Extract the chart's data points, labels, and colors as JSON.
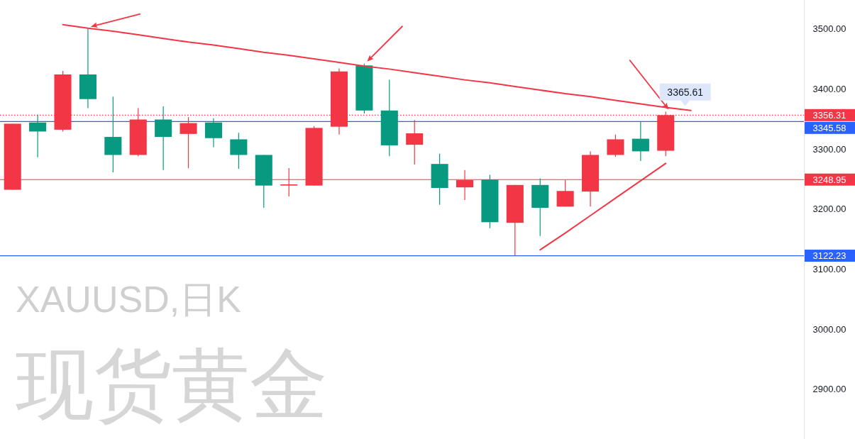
{
  "chart_data": {
    "type": "candlestick",
    "title": "XAUUSD,日K",
    "subtitle": "现货黄金",
    "categories": [
      null,
      null,
      null,
      null,
      null,
      null,
      null,
      null,
      null,
      null,
      null,
      null,
      null,
      null,
      null,
      null,
      null,
      null,
      null,
      null,
      null,
      null,
      null,
      null,
      null,
      null,
      null,
      null,
      null,
      null,
      null,
      null
    ],
    "ohlc": [
      [
        3232,
        3342,
        3232,
        3342
      ],
      [
        3344,
        3357,
        3286,
        3329
      ],
      [
        3332,
        3430,
        3329,
        3424
      ],
      [
        3424,
        3500,
        3368,
        3383
      ],
      [
        3320,
        3387,
        3261,
        3290
      ],
      [
        3290,
        3368,
        3288,
        3349
      ],
      [
        3349,
        3371,
        3265,
        3320
      ],
      [
        3325,
        3353,
        3268,
        3343
      ],
      [
        3344,
        3351,
        3303,
        3318
      ],
      [
        3316,
        3327,
        3267,
        3290
      ],
      [
        3290,
        3290,
        3202,
        3239
      ],
      [
        3239,
        3268,
        3221,
        3241
      ],
      [
        3239,
        3338,
        3239,
        3335
      ],
      [
        3337,
        3434,
        3324,
        3429
      ],
      [
        3439,
        3442,
        3359,
        3364
      ],
      [
        3364,
        3415,
        3288,
        3306
      ],
      [
        3307,
        3348,
        3274,
        3326
      ],
      [
        3275,
        3292,
        3207,
        3235
      ],
      [
        3236,
        3265,
        3215,
        3248
      ],
      [
        3249,
        3257,
        3168,
        3178
      ],
      [
        3177,
        3240,
        3122,
        3240
      ],
      [
        3240,
        3251,
        3155,
        3202
      ],
      [
        3204,
        3248,
        3204,
        3230
      ],
      [
        3229,
        3296,
        3204,
        3290
      ],
      [
        3290,
        3324,
        3287,
        3316
      ],
      [
        3317,
        3345,
        3280,
        3296
      ],
      [
        3297,
        3362,
        3288,
        3356.31
      ],
      null,
      null,
      null,
      null,
      null
    ],
    "colors": [
      "#f23645",
      "#089981",
      "#f23645",
      "#089981",
      "#089981",
      "#f23645",
      "#089981",
      "#f23645",
      "#089981",
      "#089981",
      "#089981",
      "#f23645",
      "#f23645",
      "#f23645",
      "#089981",
      "#089981",
      "#f23645",
      "#089981",
      "#f23645",
      "#089981",
      "#f23645",
      "#089981",
      "#f23645",
      "#f23645",
      "#f23645",
      "#089981",
      "#f23645",
      null,
      null,
      null,
      null,
      null
    ],
    "series": [
      {
        "type": "line",
        "color": "#f23645",
        "values": [
          null,
          null,
          3507,
          3501,
          3496,
          3490,
          3484,
          3478,
          3473,
          3467,
          3461,
          3456,
          3450,
          3444,
          3438,
          3433,
          3427,
          3421,
          3415,
          3410,
          3404,
          3398,
          3392,
          3387,
          3381,
          3375,
          3369,
          3364,
          null,
          null,
          null,
          null
        ]
      },
      {
        "type": "line",
        "color": "#f23645",
        "values": [
          null,
          null,
          null,
          null,
          null,
          null,
          null,
          null,
          null,
          null,
          null,
          null,
          null,
          null,
          null,
          null,
          null,
          null,
          null,
          null,
          null,
          3132,
          3160,
          3189,
          3218,
          3247,
          3276,
          null,
          null,
          null,
          null,
          null
        ]
      }
    ],
    "ref_lines": [
      {
        "axis": "y",
        "value": 3356.31,
        "label": "3356.31",
        "color": "#f23645",
        "line_style": "dotted"
      },
      {
        "axis": "y",
        "value": 3345.58,
        "label": "3345.58",
        "color": "#2962ff",
        "line_style": "solid"
      },
      {
        "axis": "y",
        "value": 3248.95,
        "label": "3248.95",
        "color": "#f23645",
        "line_style": "solid"
      },
      {
        "axis": "y",
        "value": 3122.23,
        "label": "3122.23",
        "color": "#2962ff",
        "line_style": "solid"
      }
    ],
    "annotations": [
      "3365.61"
    ],
    "ylim": [
      2817,
      3548
    ],
    "yticks": [
      {
        "value": 2900,
        "label": "2900.00"
      },
      {
        "value": 3000,
        "label": "3000.00"
      },
      {
        "value": 3100,
        "label": "3100.00"
      },
      {
        "value": 3200,
        "label": "3200.00"
      },
      {
        "value": 3300,
        "label": "3300.00"
      },
      {
        "value": 3400,
        "label": "3400.00"
      },
      {
        "value": 3500,
        "label": "3500.00"
      }
    ],
    "tick_labels": "y",
    "grid": false
  }
}
